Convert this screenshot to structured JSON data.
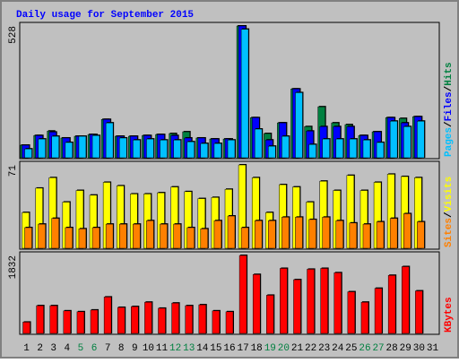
{
  "chart_data": [
    {
      "type": "bar",
      "title": "Daily usage for September 2015",
      "ylim": [
        0,
        528
      ],
      "yticks": [
        528
      ],
      "series": [
        {
          "name": "Hits",
          "color": "#008040",
          "values": [
            47,
            86,
            104,
            76,
            83,
            90,
            151,
            83,
            83,
            86,
            90,
            94,
            101,
            76,
            72,
            72,
            528,
            158,
            94,
            137,
            274,
            122,
            202,
            137,
            130,
            86,
            101,
            158,
            155,
            162,
            null
          ]
        },
        {
          "name": "Files",
          "color": "#0000ff",
          "values": [
            47,
            86,
            100,
            76,
            83,
            90,
            151,
            83,
            83,
            86,
            90,
            86,
            76,
            76,
            72,
            72,
            528,
            158,
            68,
            137,
            274,
            104,
            122,
            122,
            122,
            86,
            101,
            158,
            137,
            162,
            null
          ]
        },
        {
          "name": "Pages",
          "color": "#00c0ff",
          "values": [
            32,
            72,
            83,
            58,
            83,
            86,
            137,
            76,
            68,
            72,
            68,
            68,
            61,
            54,
            54,
            68,
            515,
            112,
            43,
            83,
            259,
            50,
            72,
            72,
            72,
            68,
            58,
            144,
            122,
            144,
            null
          ]
        }
      ]
    },
    {
      "type": "bar",
      "ylim": [
        0,
        71
      ],
      "yticks": [
        71
      ],
      "series": [
        {
          "name": "Visits",
          "color": "#ffff00",
          "values": [
            30,
            51,
            60,
            39,
            49,
            45,
            56,
            53,
            46,
            46,
            47,
            52,
            48,
            42,
            43,
            50,
            71,
            60,
            30,
            54,
            52,
            39,
            57,
            49,
            62,
            49,
            56,
            63,
            61,
            60,
            null
          ]
        },
        {
          "name": "Sites",
          "color": "#ff8000",
          "values": [
            17,
            20,
            25,
            17,
            16,
            17,
            20,
            20,
            20,
            23,
            20,
            20,
            17,
            16,
            23,
            27,
            17,
            23,
            23,
            26,
            26,
            24,
            26,
            23,
            21,
            20,
            22,
            25,
            29,
            22,
            null
          ]
        }
      ]
    },
    {
      "type": "bar",
      "ylim": [
        0,
        1832
      ],
      "yticks": [
        1832
      ],
      "categories": [
        "1",
        "2",
        "3",
        "4",
        "5",
        "6",
        "7",
        "8",
        "9",
        "10",
        "11",
        "12",
        "13",
        "14",
        "15",
        "16",
        "17",
        "18",
        "19",
        "20",
        "21",
        "22",
        "23",
        "24",
        "25",
        "26",
        "27",
        "28",
        "29",
        "30",
        "31"
      ],
      "category_colors": [
        "#000000",
        "#000000",
        "#000000",
        "#000000",
        "#008040",
        "#008040",
        "#000000",
        "#000000",
        "#000000",
        "#000000",
        "#000000",
        "#008040",
        "#008040",
        "#000000",
        "#000000",
        "#000000",
        "#000000",
        "#000000",
        "#008040",
        "#008040",
        "#000000",
        "#000000",
        "#000000",
        "#000000",
        "#000000",
        "#008040",
        "#008040",
        "#000000",
        "#000000",
        "#000000",
        "#000000"
      ],
      "series": [
        {
          "name": "KBytes",
          "color": "#ff0000",
          "values": [
            247,
            638,
            638,
            515,
            494,
            535,
            844,
            597,
            617,
            721,
            577,
            700,
            638,
            659,
            515,
            494,
            1832,
            1380,
            886,
            1524,
            1256,
            1504,
            1524,
            1421,
            968,
            721,
            1051,
            1359,
            1566,
            989,
            null
          ]
        }
      ]
    }
  ]
}
